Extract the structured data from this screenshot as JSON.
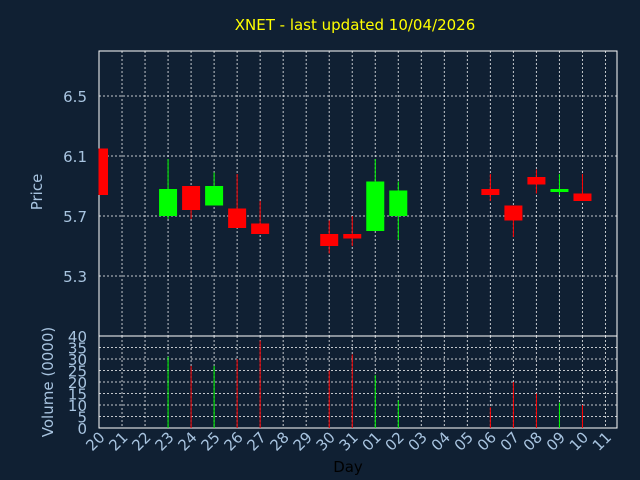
{
  "chart_data": {
    "type": "candlestick",
    "title": "XNET - last updated 10/04/2026",
    "xlabel": "Day",
    "price_panel": {
      "ylabel": "Price",
      "yticks": [
        "5.3",
        "5.7",
        "6.1",
        "6.5"
      ],
      "ylim": [
        4.9,
        6.8
      ],
      "grid": true
    },
    "volume_panel": {
      "ylabel": "Volume (0000)",
      "yticks": [
        "0",
        "5",
        "10",
        "15",
        "20",
        "25",
        "30",
        "35",
        "40"
      ],
      "ylim": [
        0,
        40
      ],
      "grid": true
    },
    "x_labels": [
      "20",
      "21",
      "22",
      "23",
      "24",
      "25",
      "26",
      "27",
      "28",
      "29",
      "30",
      "31",
      "01",
      "02",
      "03",
      "04",
      "05",
      "06",
      "07",
      "08",
      "09",
      "10",
      "11"
    ],
    "candles": [
      {
        "day": "20",
        "open": 6.15,
        "close": 5.84,
        "high": 6.15,
        "low": 5.84,
        "volume": 0
      },
      {
        "day": "23",
        "open": 5.7,
        "close": 5.88,
        "high": 6.08,
        "low": 5.68,
        "volume": 31
      },
      {
        "day": "24",
        "open": 5.9,
        "close": 5.74,
        "high": 5.9,
        "low": 5.68,
        "volume": 27
      },
      {
        "day": "25",
        "open": 5.77,
        "close": 5.9,
        "high": 5.99,
        "low": 5.77,
        "volume": 27
      },
      {
        "day": "26",
        "open": 5.75,
        "close": 5.62,
        "high": 5.98,
        "low": 5.62,
        "volume": 30
      },
      {
        "day": "27",
        "open": 5.65,
        "close": 5.58,
        "high": 5.8,
        "low": 5.58,
        "volume": 38
      },
      {
        "day": "30",
        "open": 5.58,
        "close": 5.5,
        "high": 5.67,
        "low": 5.45,
        "volume": 25
      },
      {
        "day": "31",
        "open": 5.58,
        "close": 5.55,
        "high": 5.7,
        "low": 5.5,
        "volume": 32
      },
      {
        "day": "01",
        "open": 5.6,
        "close": 5.93,
        "high": 6.08,
        "low": 5.6,
        "volume": 23
      },
      {
        "day": "02",
        "open": 5.7,
        "close": 5.87,
        "high": 5.93,
        "low": 5.54,
        "volume": 12
      },
      {
        "day": "06",
        "open": 5.88,
        "close": 5.84,
        "high": 5.98,
        "low": 5.8,
        "volume": 9
      },
      {
        "day": "07",
        "open": 5.77,
        "close": 5.67,
        "high": 5.77,
        "low": 5.56,
        "volume": 20
      },
      {
        "day": "08",
        "open": 5.96,
        "close": 5.91,
        "high": 6.01,
        "low": 5.85,
        "volume": 15
      },
      {
        "day": "09",
        "open": 5.86,
        "close": 5.88,
        "high": 5.98,
        "low": 5.84,
        "volume": 11
      },
      {
        "day": "10",
        "open": 5.85,
        "close": 5.8,
        "high": 5.98,
        "low": 5.8,
        "volume": 10
      }
    ],
    "colors": {
      "background": "#102033",
      "up": "#00ff00",
      "down": "#ff0000",
      "title": "#ffff00",
      "axis_text": "#a8c4e0",
      "grid": "#ffffff"
    }
  }
}
